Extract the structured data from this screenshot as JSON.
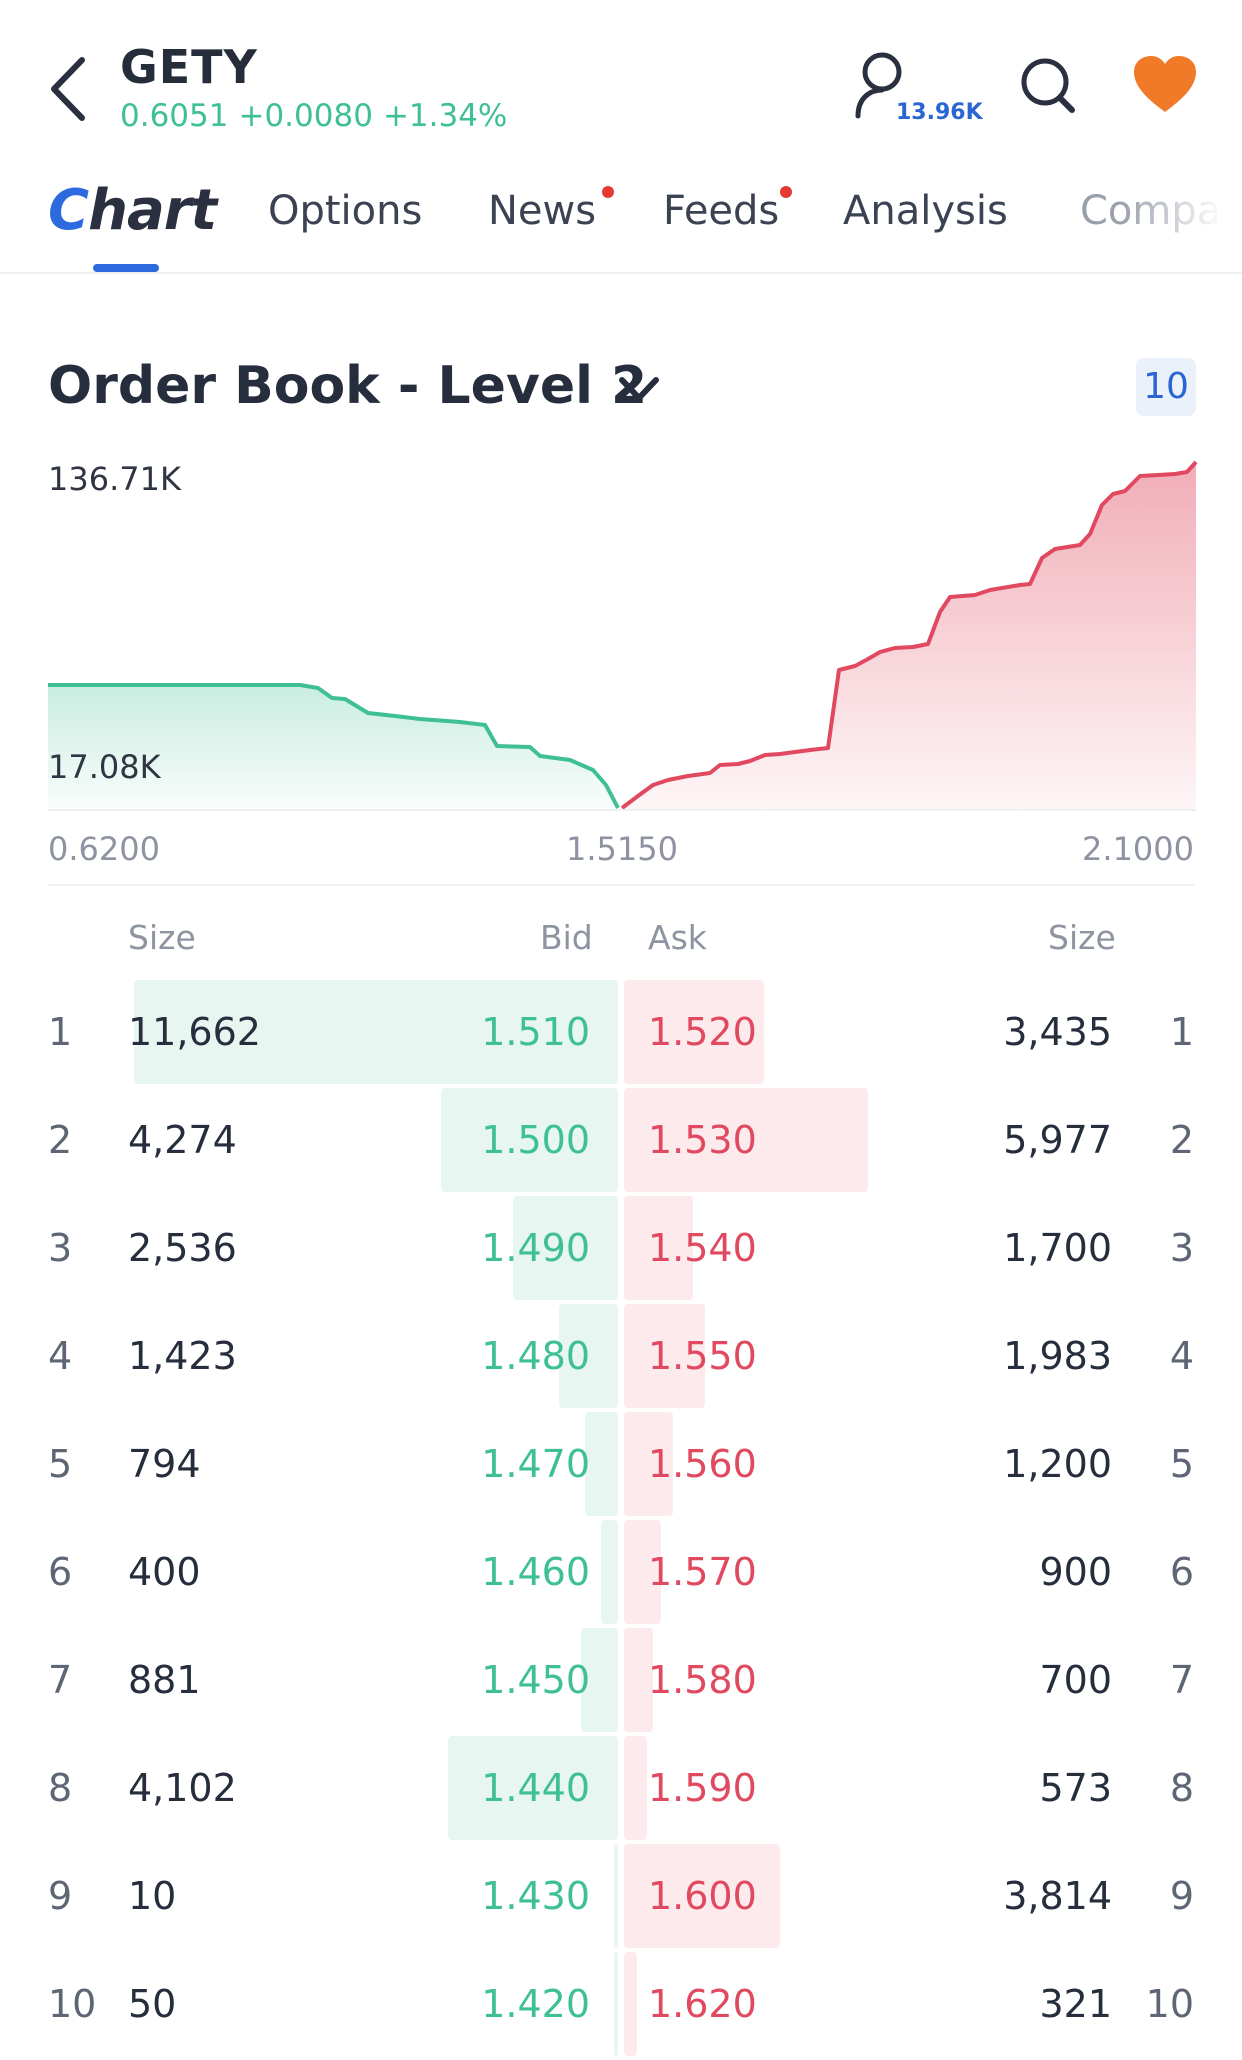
{
  "header": {
    "ticker": "GETY",
    "price": "0.6051",
    "change": "+0.0080",
    "change_pct": "+1.34%",
    "followers": "13.96K"
  },
  "tabs": [
    {
      "label": "Chart",
      "active": true
    },
    {
      "label": "Options",
      "dot": false
    },
    {
      "label": "News",
      "dot": true
    },
    {
      "label": "Feeds",
      "dot": true
    },
    {
      "label": "Analysis",
      "dot": false
    },
    {
      "label": "Compar",
      "dot": false
    }
  ],
  "order_book": {
    "title": "Order Book - Level 2",
    "depth_badge": "10",
    "y_max_label": "136.71K",
    "y_min_label": "17.08K",
    "x_left_label": "0.6200",
    "x_mid_label": "1.5150",
    "x_right_label": "2.1000",
    "headers": {
      "size_left": "Size",
      "bid": "Bid",
      "ask": "Ask",
      "size_right": "Size"
    },
    "rows": [
      {
        "level": "1",
        "bid_size": "11,662",
        "bid": "1.510",
        "ask": "1.520",
        "ask_size": "3,435",
        "level_r": "1"
      },
      {
        "level": "2",
        "bid_size": "4,274",
        "bid": "1.500",
        "ask": "1.530",
        "ask_size": "5,977",
        "level_r": "2"
      },
      {
        "level": "3",
        "bid_size": "2,536",
        "bid": "1.490",
        "ask": "1.540",
        "ask_size": "1,700",
        "level_r": "3"
      },
      {
        "level": "4",
        "bid_size": "1,423",
        "bid": "1.480",
        "ask": "1.550",
        "ask_size": "1,983",
        "level_r": "4"
      },
      {
        "level": "5",
        "bid_size": "794",
        "bid": "1.470",
        "ask": "1.560",
        "ask_size": "1,200",
        "level_r": "5"
      },
      {
        "level": "6",
        "bid_size": "400",
        "bid": "1.460",
        "ask": "1.570",
        "ask_size": "900",
        "level_r": "6"
      },
      {
        "level": "7",
        "bid_size": "881",
        "bid": "1.450",
        "ask": "1.580",
        "ask_size": "700",
        "level_r": "7"
      },
      {
        "level": "8",
        "bid_size": "4,102",
        "bid": "1.440",
        "ask": "1.590",
        "ask_size": "573",
        "level_r": "8"
      },
      {
        "level": "9",
        "bid_size": "10",
        "bid": "1.430",
        "ask": "1.600",
        "ask_size": "3,814",
        "level_r": "9"
      },
      {
        "level": "10",
        "bid_size": "50",
        "bid": "1.420",
        "ask": "1.620",
        "ask_size": "321",
        "level_r": "10"
      }
    ]
  },
  "colors": {
    "bid": "#3fbf95",
    "ask": "#e0495f",
    "accent": "#2d6ae0",
    "heart": "#f07a28"
  },
  "icons": [
    "back-arrow-icon",
    "user-follow-icon",
    "search-icon",
    "heart-icon",
    "chevron-down-icon"
  ]
}
